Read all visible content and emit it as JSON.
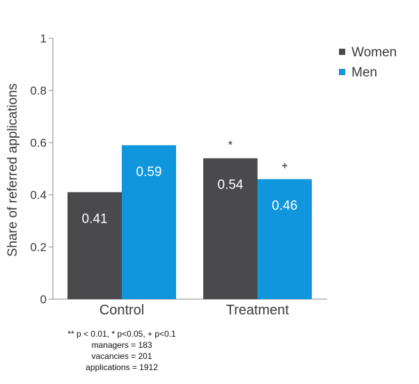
{
  "chart_data": {
    "type": "bar",
    "categories": [
      "Control",
      "Treatment"
    ],
    "series": [
      {
        "name": "Women",
        "color": "#4a4a4d",
        "values": [
          0.41,
          0.54
        ],
        "labels": [
          "0.41",
          "0.54"
        ],
        "significance": [
          "",
          "*"
        ]
      },
      {
        "name": "Men",
        "color": "#0f96dc",
        "values": [
          0.59,
          0.46
        ],
        "labels": [
          "0.59",
          "0.46"
        ],
        "significance": [
          "",
          "+"
        ]
      }
    ],
    "ylabel": "Share of referred applications",
    "xlabel": "",
    "ylim": [
      0,
      1
    ],
    "yticks": [
      "0",
      "0.2",
      "0.4",
      "0.6",
      "0.8",
      "1"
    ],
    "grid": false,
    "legend_position": "top-right"
  },
  "notes": {
    "significance": "** p < 0.01, * p<0.05, + p<0.1",
    "managers": "managers = 183",
    "vacancies": "vacancies = 201",
    "applications": "applications = 1912"
  }
}
